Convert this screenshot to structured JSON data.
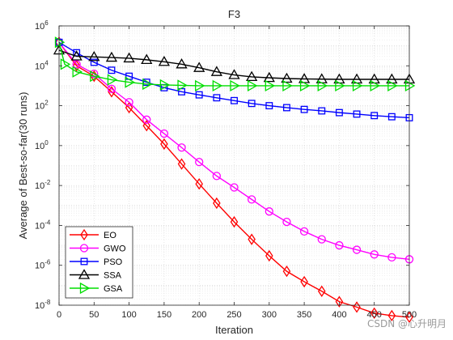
{
  "chart_data": {
    "type": "line",
    "title": "F3",
    "xlabel": "Iteration",
    "ylabel": "Average of Best-so-far(30 runs)",
    "xlim": [
      0,
      500
    ],
    "ylim": [
      1e-08,
      1000000.0
    ],
    "yscale": "log",
    "grid": true,
    "legend_position": "bottom-left",
    "x_ticks": [
      "0",
      "50",
      "100",
      "150",
      "200",
      "250",
      "300",
      "350",
      "400",
      "450",
      "500"
    ],
    "y_ticks": [
      {
        "base": "10",
        "exp": "-8"
      },
      {
        "base": "10",
        "exp": "-6"
      },
      {
        "base": "10",
        "exp": "-4"
      },
      {
        "base": "10",
        "exp": "-2"
      },
      {
        "base": "10",
        "exp": "0"
      },
      {
        "base": "10",
        "exp": "2"
      },
      {
        "base": "10",
        "exp": "4"
      },
      {
        "base": "10",
        "exp": "6"
      }
    ],
    "series": [
      {
        "name": "EO",
        "color": "#ff0000",
        "marker": "diamond",
        "points": [
          [
            0,
            150000
          ],
          [
            25,
            10000
          ],
          [
            50,
            3000
          ],
          [
            75,
            500
          ],
          [
            100,
            80
          ],
          [
            125,
            10
          ],
          [
            150,
            1.2
          ],
          [
            175,
            0.12
          ],
          [
            200,
            0.012
          ],
          [
            225,
            0.0013
          ],
          [
            250,
            0.00015
          ],
          [
            275,
            2e-05
          ],
          [
            300,
            3e-06
          ],
          [
            325,
            5e-07
          ],
          [
            350,
            1.5e-07
          ],
          [
            375,
            5e-08
          ],
          [
            400,
            1.5e-08
          ],
          [
            425,
            8e-09
          ],
          [
            450,
            4e-09
          ],
          [
            475,
            3e-09
          ],
          [
            500,
            2.5e-09
          ]
        ]
      },
      {
        "name": "GWO",
        "color": "#ff00ff",
        "marker": "circle",
        "points": [
          [
            0,
            150000
          ],
          [
            25,
            12000
          ],
          [
            50,
            4000
          ],
          [
            75,
            700
          ],
          [
            100,
            150
          ],
          [
            125,
            20
          ],
          [
            150,
            4
          ],
          [
            175,
            0.8
          ],
          [
            200,
            0.15
          ],
          [
            225,
            0.03
          ],
          [
            250,
            0.008
          ],
          [
            275,
            0.002
          ],
          [
            300,
            0.0005
          ],
          [
            325,
            0.00015
          ],
          [
            350,
            5e-05
          ],
          [
            375,
            2e-05
          ],
          [
            400,
            1e-05
          ],
          [
            425,
            6e-06
          ],
          [
            450,
            3.5e-06
          ],
          [
            475,
            2.5e-06
          ],
          [
            500,
            2e-06
          ]
        ]
      },
      {
        "name": "PSO",
        "color": "#0000ff",
        "marker": "square",
        "points": [
          [
            0,
            150000
          ],
          [
            25,
            45000
          ],
          [
            50,
            15000
          ],
          [
            75,
            6000
          ],
          [
            100,
            3000
          ],
          [
            125,
            1500
          ],
          [
            150,
            800
          ],
          [
            175,
            500
          ],
          [
            200,
            350
          ],
          [
            225,
            250
          ],
          [
            250,
            180
          ],
          [
            275,
            130
          ],
          [
            300,
            100
          ],
          [
            325,
            80
          ],
          [
            350,
            65
          ],
          [
            375,
            55
          ],
          [
            400,
            45
          ],
          [
            425,
            38
          ],
          [
            450,
            32
          ],
          [
            475,
            28
          ],
          [
            500,
            25
          ]
        ]
      },
      {
        "name": "SSA",
        "color": "#000000",
        "marker": "triangle",
        "points": [
          [
            0,
            60000
          ],
          [
            25,
            30000
          ],
          [
            50,
            28000
          ],
          [
            75,
            26000
          ],
          [
            100,
            24000
          ],
          [
            125,
            20000
          ],
          [
            150,
            16000
          ],
          [
            175,
            12000
          ],
          [
            200,
            8000
          ],
          [
            225,
            5000
          ],
          [
            250,
            3500
          ],
          [
            275,
            2800
          ],
          [
            300,
            2500
          ],
          [
            325,
            2300
          ],
          [
            350,
            2200
          ],
          [
            375,
            2150
          ],
          [
            400,
            2100
          ],
          [
            425,
            2100
          ],
          [
            450,
            2100
          ],
          [
            475,
            2100
          ],
          [
            500,
            2100
          ]
        ]
      },
      {
        "name": "GSA",
        "color": "#00dd00",
        "marker": "triangle-right",
        "points": [
          [
            0,
            150000
          ],
          [
            8,
            12000
          ],
          [
            25,
            5000
          ],
          [
            50,
            3000
          ],
          [
            75,
            2000
          ],
          [
            100,
            1500
          ],
          [
            125,
            1200
          ],
          [
            150,
            1100
          ],
          [
            175,
            1050
          ],
          [
            200,
            1000
          ],
          [
            225,
            1000
          ],
          [
            250,
            1000
          ],
          [
            275,
            1000
          ],
          [
            300,
            1000
          ],
          [
            325,
            1000
          ],
          [
            350,
            1000
          ],
          [
            375,
            1000
          ],
          [
            400,
            1000
          ],
          [
            425,
            1000
          ],
          [
            450,
            1000
          ],
          [
            475,
            1000
          ],
          [
            500,
            1000
          ]
        ]
      }
    ]
  },
  "watermark": "CSDN @心升明月"
}
